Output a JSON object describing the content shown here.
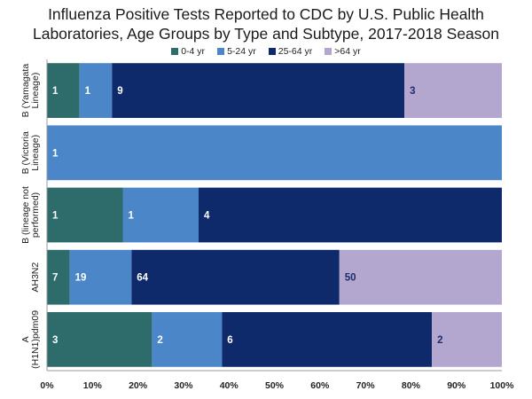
{
  "chart_data": {
    "type": "bar",
    "orientation": "horizontal",
    "stacking": "percent",
    "title": [
      "Influenza Positive Tests Reported to CDC by U.S. Public Health",
      "Laboratories, Age Groups by Type and Subtype, 2017-2018 Season"
    ],
    "categories": [
      [
        "B (Yamagata",
        "Lineage)"
      ],
      [
        "B (Victoria",
        "Lineage)"
      ],
      [
        "B (lineage not",
        "performed)"
      ],
      [
        "AH3N2"
      ],
      [
        "A",
        "(H1N1)pdm09"
      ]
    ],
    "series": [
      {
        "name": "0-4 yr",
        "color": "#2e6b6b",
        "values": [
          1,
          0,
          1,
          7,
          3
        ]
      },
      {
        "name": "5-24 yr",
        "color": "#4a86c8",
        "values": [
          1,
          1,
          1,
          19,
          2
        ]
      },
      {
        "name": "25-64 yr",
        "color": "#0f2a6b",
        "values": [
          9,
          0,
          4,
          64,
          6
        ]
      },
      {
        "name": ">64 yr",
        "color": "#b3a6cf",
        "values": [
          3,
          0,
          0,
          50,
          2
        ]
      }
    ],
    "label_colors": [
      "#ffffff",
      "#ffffff",
      "#ffffff",
      "#1f2d6b"
    ],
    "x_ticks": [
      "0%",
      "10%",
      "20%",
      "30%",
      "40%",
      "50%",
      "60%",
      "70%",
      "80%",
      "90%",
      "100%"
    ],
    "xlim": [
      0,
      100
    ],
    "legend": "top",
    "grid": false
  }
}
